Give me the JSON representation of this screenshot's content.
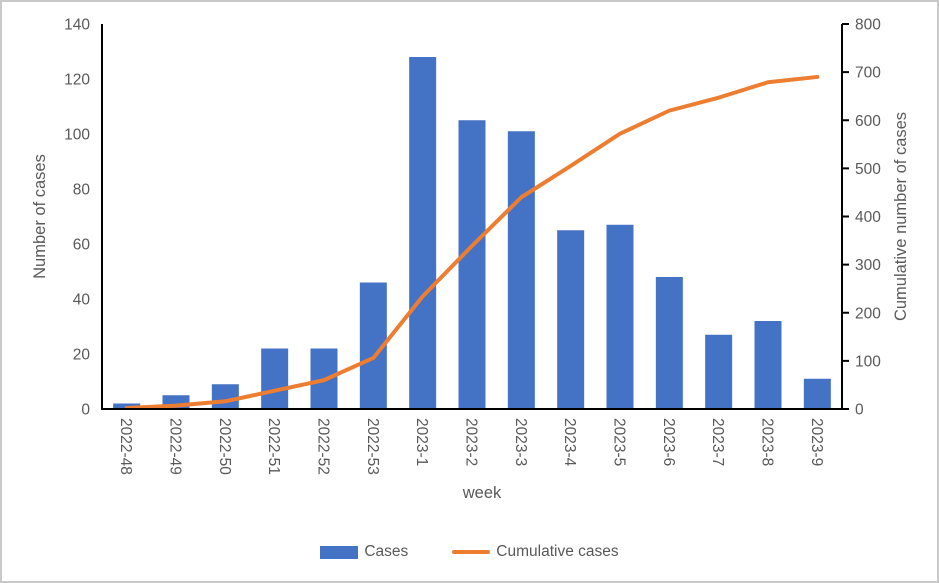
{
  "chart_data": {
    "type": "bar",
    "combo": "bar+line",
    "categories": [
      "2022-48",
      "2022-49",
      "2022-50",
      "2022-51",
      "2022-52",
      "2022-53",
      "2023-1",
      "2023-2",
      "2023-3",
      "2023-4",
      "2023-5",
      "2023-6",
      "2023-7",
      "2023-8",
      "2023-9"
    ],
    "series": [
      {
        "name": "Cases",
        "type": "bar",
        "axis": "left",
        "color": "#4472C4",
        "values": [
          2,
          5,
          9,
          22,
          22,
          46,
          128,
          105,
          101,
          65,
          67,
          48,
          27,
          32,
          11
        ]
      },
      {
        "name": "Cumulative cases",
        "type": "line",
        "axis": "right",
        "color": "#ED7D31",
        "values": [
          2,
          7,
          16,
          38,
          60,
          106,
          234,
          339,
          440,
          505,
          572,
          620,
          647,
          679,
          690
        ]
      }
    ],
    "title": "",
    "xlabel": "week",
    "left_axis": {
      "title": "Number of cases",
      "min": 0,
      "max": 140,
      "ticks": [
        0,
        20,
        40,
        60,
        80,
        100,
        120,
        140
      ]
    },
    "right_axis": {
      "title": "Cumulative number of cases",
      "min": 0,
      "max": 800,
      "ticks": [
        0,
        100,
        200,
        300,
        400,
        500,
        600,
        700,
        800
      ]
    },
    "grid": false,
    "legend_position": "bottom"
  },
  "legend": {
    "items": [
      {
        "label": "Cases",
        "color": "#4472C4",
        "kind": "bar"
      },
      {
        "label": "Cumulative cases",
        "color": "#ED7D31",
        "kind": "line"
      }
    ]
  },
  "colors": {
    "bar": "#4472C4",
    "line": "#ED7D31",
    "axis_text": "#595959",
    "axis_line": "#000000",
    "frame_border": "#c9c9c9",
    "background": "#ffffff"
  }
}
